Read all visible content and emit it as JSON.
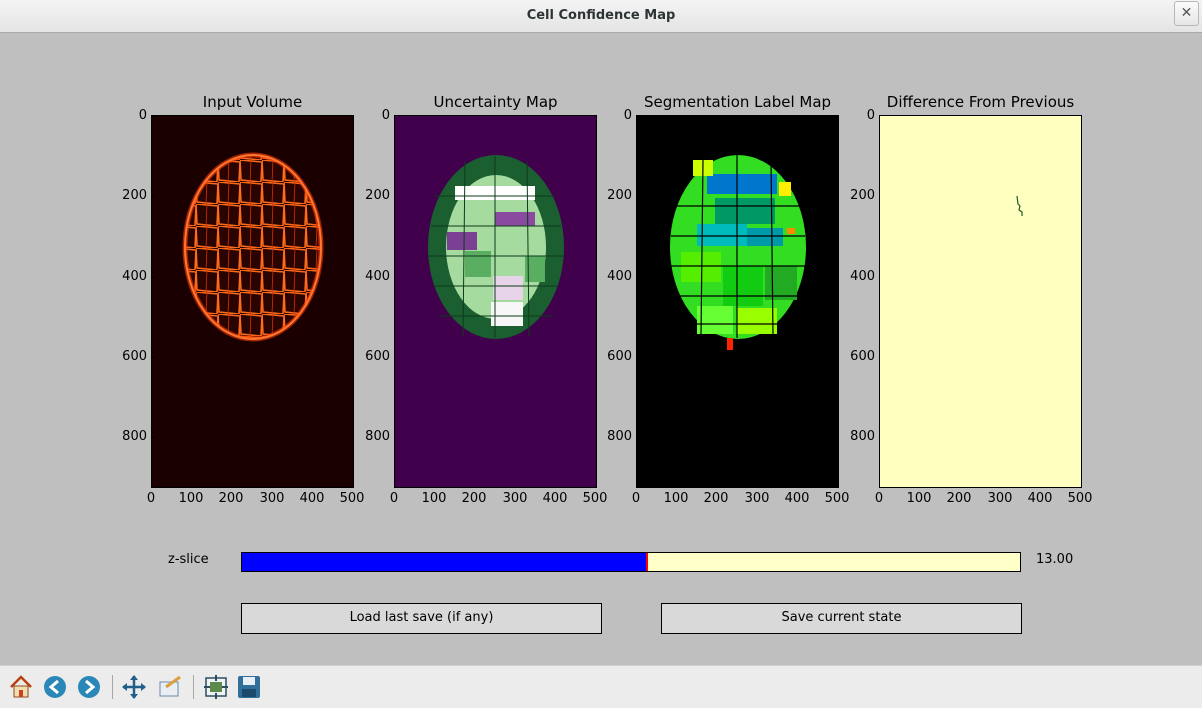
{
  "window": {
    "title": "Cell Confidence Map",
    "close_glyph": "✕"
  },
  "plots": [
    {
      "title": "Input Volume",
      "colormap": "hot"
    },
    {
      "title": "Uncertainty Map",
      "colormap": "PRGn"
    },
    {
      "title": "Segmentation Label Map",
      "colormap": "nipy_spectral"
    },
    {
      "title": "Difference From Previous",
      "colormap": "constant light yellow"
    }
  ],
  "y_ticks": [
    "0",
    "200",
    "400",
    "600",
    "800"
  ],
  "x_ticks": [
    "0",
    "100",
    "200",
    "300",
    "400",
    "500"
  ],
  "slider": {
    "label": "z-slice",
    "value_text": "13.00",
    "fraction": 0.52,
    "fill_color": "#0000ff",
    "track_color": "#ffffc8",
    "marker_color": "#ff0000"
  },
  "buttons": {
    "load": "Load last save (if any)",
    "save": "Save current state"
  },
  "toolbar": {
    "icons": [
      "home-icon",
      "back-arrow-icon",
      "forward-arrow-icon",
      "pan-icon",
      "zoom-icon",
      "subplots-config-icon",
      "save-figure-icon"
    ]
  },
  "colors": {
    "figure_bg": "#bfbfbf",
    "input_bg": "#1a0000",
    "uncertainty_bg": "#40004b",
    "segmentation_bg": "#000000",
    "difference_bg": "#ffffbf"
  }
}
